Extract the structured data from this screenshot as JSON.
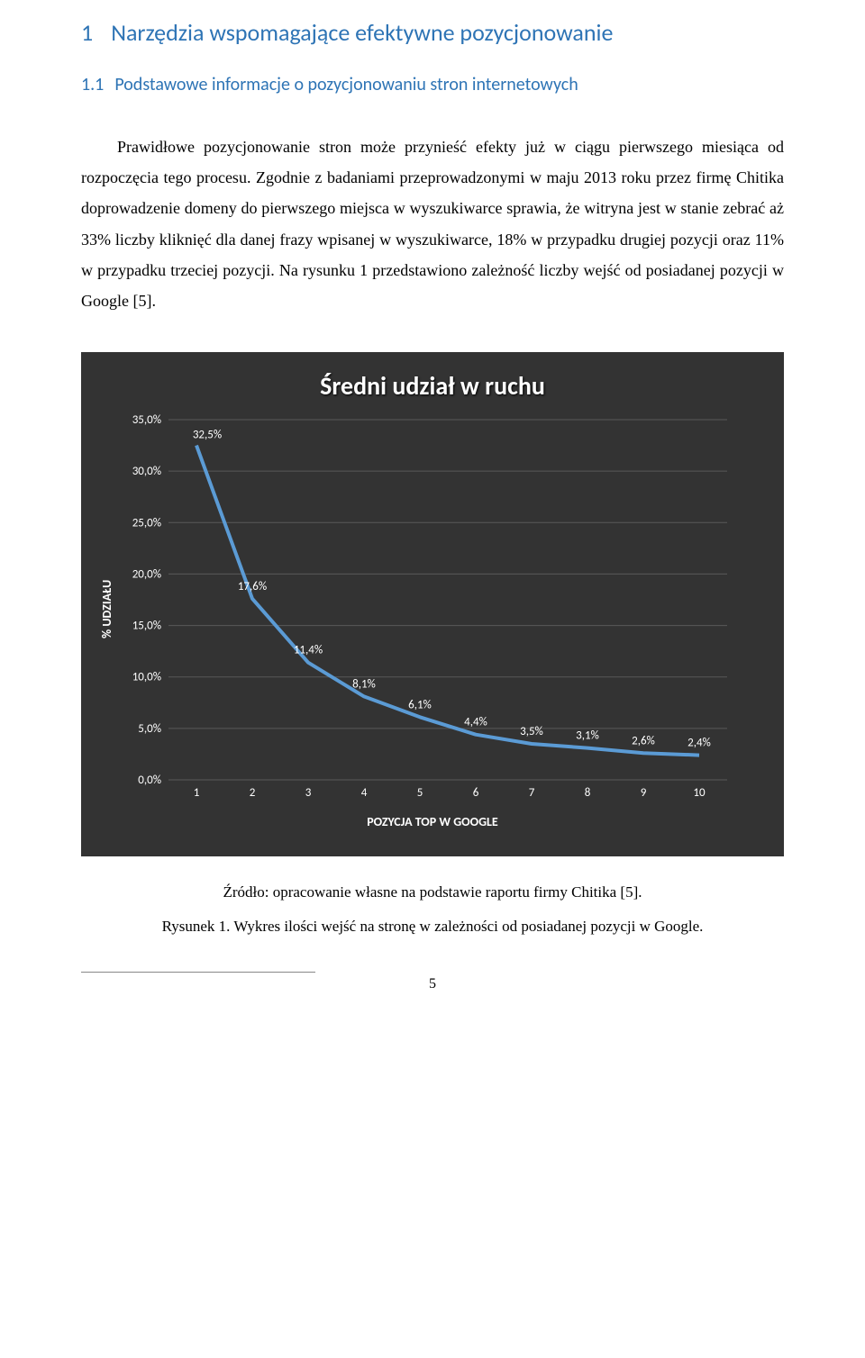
{
  "headings": {
    "h1_num": "1",
    "h1_text": "Narzędzia wspomagające efektywne pozycjonowanie",
    "h2_num": "1.1",
    "h2_text": "Podstawowe informacje o pozycjonowaniu stron internetowych"
  },
  "body_text": "Prawidłowe pozycjonowanie stron może przynieść efekty już w ciągu pierwszego miesiąca od rozpoczęcia tego procesu. Zgodnie z badaniami przeprowadzonymi w maju 2013 roku przez firmę Chitika doprowadzenie domeny do pierwszego miejsca w wyszukiwarce sprawia, że witryna jest w stanie zebrać aż 33% liczby kliknięć dla danej frazy wpisanej w wyszukiwarce, 18% w przypadku drugiej pozycji oraz 11% w przypadku trzeciej pozycji. Na rysunku 1 przedstawiono zależność liczby wejść od posiadanej pozycji w Google [5].",
  "source_line": "Źródło: opracowanie własne na podstawie raportu firmy Chitika [5].",
  "caption_line": "Rysunek 1. Wykres ilości wejść na stronę w zależności od posiadanej pozycji w Google.",
  "page_number": "5",
  "chart": {
    "title": "Średni udział w ruchu",
    "ylabel": "% UDZIAŁU",
    "xlabel": "POZYCJA TOP W GOOGLE",
    "background_color": "#333333",
    "line_color": "#5b9bd5",
    "grid_color": "#595959",
    "text_color": "#ffffff",
    "categories": [
      "1",
      "2",
      "3",
      "4",
      "5",
      "6",
      "7",
      "8",
      "9",
      "10"
    ],
    "values": [
      32.5,
      17.6,
      11.4,
      8.1,
      6.1,
      4.4,
      3.5,
      3.1,
      2.6,
      2.4
    ],
    "value_labels": [
      "32,5%",
      "17,6%",
      "11,4%",
      "8,1%",
      "6,1%",
      "4,4%",
      "3,5%",
      "3,1%",
      "2,6%",
      "2,4%"
    ],
    "yticks": [
      0,
      5,
      10,
      15,
      20,
      25,
      30,
      35
    ],
    "ytick_labels": [
      "0,0%",
      "5,0%",
      "10,0%",
      "15,0%",
      "20,0%",
      "25,0%",
      "30,0%",
      "35,0%"
    ],
    "ylim": [
      0,
      35
    ],
    "line_width": 4,
    "marker_radius": 0
  }
}
